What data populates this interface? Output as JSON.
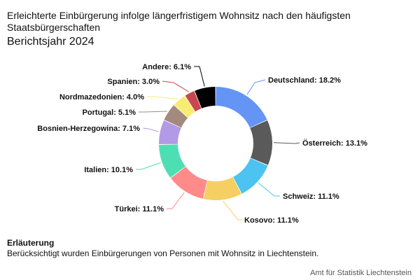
{
  "header": {
    "title": "Erleichterte Einbürgerung infolge längerfristigem Wohnsitz nach den häufigsten Staatsbürgerschaften",
    "subtitle": "Berichtsjahr 2024"
  },
  "chart_data": {
    "type": "pie",
    "donut": true,
    "value_format": "percent",
    "categories": [
      "Deutschland",
      "Österreich",
      "Schweiz",
      "Kosovo",
      "Türkei",
      "Italien",
      "Bosnien-Herzegowina",
      "Portugal",
      "Nordmazedonien",
      "Spanien",
      "Andere"
    ],
    "values": [
      18.2,
      13.1,
      11.1,
      11.1,
      11.1,
      10.1,
      7.1,
      5.1,
      4.0,
      3.0,
      6.1
    ],
    "labels": [
      "Deutschland: 18.2%",
      "Österreich: 13.1%",
      "Schweiz: 11.1%",
      "Kosovo: 11.1%",
      "Türkei: 11.1%",
      "Italien: 10.1%",
      "Bosnien-Herzegowina: 7.1%",
      "Portugal: 5.1%",
      "Nordmazedonien: 4.0%",
      "Spanien: 3.0%",
      "Andere: 6.1%"
    ],
    "colors": [
      "#6495f5",
      "#5a5a5a",
      "#4cc3f0",
      "#f5cf62",
      "#ff8a8a",
      "#4ddfb3",
      "#b39ae6",
      "#a38a7d",
      "#f7ec73",
      "#c7484e",
      "#000000"
    ]
  },
  "footnote": {
    "title": "Erläuterung",
    "text": "Berücksichtigt wurden Einbürgerungen von Personen mit Wohnsitz in Liechtenstein."
  },
  "source": "Amt für Statistik Liechtenstein"
}
